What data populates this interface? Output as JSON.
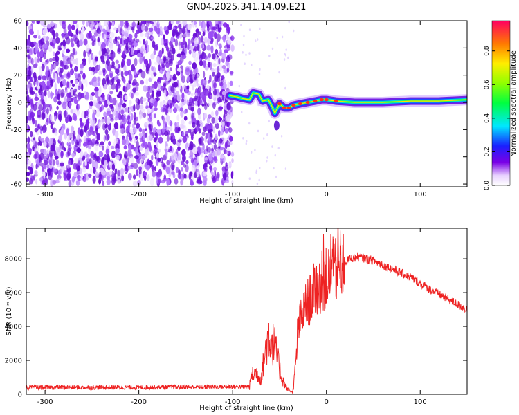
{
  "title": "GN04.2025.341.14.09.E21",
  "chart_data": [
    {
      "type": "heatmap",
      "name": "spectrogram",
      "xlabel": "Height of straight line (km)",
      "ylabel": "Frequency (Hz)",
      "xlim": [
        -320,
        150
      ],
      "ylim": [
        -62,
        60
      ],
      "xticks": [
        -300,
        -200,
        -100,
        0,
        100
      ],
      "yticks": [
        -60,
        -40,
        -20,
        0,
        20,
        40,
        60
      ],
      "noise_region": {
        "from": -320,
        "to": -100,
        "freq_range": [
          -60,
          60
        ],
        "amplitude": 0.2
      },
      "signal_track": [
        {
          "x": -103,
          "f": 5
        },
        {
          "x": -95,
          "f": 4
        },
        {
          "x": -90,
          "f": 3
        },
        {
          "x": -82,
          "f": 2
        },
        {
          "x": -78,
          "f": 7
        },
        {
          "x": -72,
          "f": 6
        },
        {
          "x": -68,
          "f": 1
        },
        {
          "x": -62,
          "f": 2
        },
        {
          "x": -58,
          "f": -3
        },
        {
          "x": -55,
          "f": -8
        },
        {
          "x": -50,
          "f": -1
        },
        {
          "x": -45,
          "f": -4
        },
        {
          "x": -40,
          "f": -4
        },
        {
          "x": -35,
          "f": -2
        },
        {
          "x": -28,
          "f": -1
        },
        {
          "x": -20,
          "f": 0
        },
        {
          "x": -12,
          "f": 1
        },
        {
          "x": -5,
          "f": 2
        },
        {
          "x": 0,
          "f": 2
        },
        {
          "x": 10,
          "f": 1
        },
        {
          "x": 30,
          "f": 0
        },
        {
          "x": 60,
          "f": 0
        },
        {
          "x": 90,
          "f": 1
        },
        {
          "x": 120,
          "f": 1
        },
        {
          "x": 150,
          "f": 2
        }
      ],
      "colorbar": {
        "label": "Normalized spectral amplitude",
        "ticks": [
          0.0,
          0.2,
          0.4,
          0.6,
          0.8
        ],
        "tick_labels": [
          "0.0",
          "0.2",
          "0.4",
          "0.6",
          "0.8"
        ],
        "range": [
          0,
          0.98
        ]
      }
    },
    {
      "type": "line",
      "name": "snr",
      "xlabel": "Height of straight line (km)",
      "ylabel": "SNR (10 * v/v)",
      "xlim": [
        -320,
        150
      ],
      "ylim": [
        0,
        9800
      ],
      "xticks": [
        -300,
        -200,
        -100,
        0,
        100
      ],
      "yticks": [
        0,
        2000,
        4000,
        6000,
        8000
      ],
      "color": "#ee2222",
      "envelope": [
        {
          "x": -320,
          "y": 400
        },
        {
          "x": -200,
          "y": 400
        },
        {
          "x": -100,
          "y": 450
        },
        {
          "x": -82,
          "y": 450
        },
        {
          "x": -80,
          "y": 1100
        },
        {
          "x": -75,
          "y": 1300
        },
        {
          "x": -70,
          "y": 900
        },
        {
          "x": -62,
          "y": 3500
        },
        {
          "x": -55,
          "y": 2800
        },
        {
          "x": -48,
          "y": 1000
        },
        {
          "x": -42,
          "y": 300
        },
        {
          "x": -36,
          "y": 100
        },
        {
          "x": -33,
          "y": 1500
        },
        {
          "x": -30,
          "y": 4000
        },
        {
          "x": -22,
          "y": 5200
        },
        {
          "x": -12,
          "y": 6200
        },
        {
          "x": -5,
          "y": 6600
        },
        {
          "x": 5,
          "y": 7000
        },
        {
          "x": 15,
          "y": 7600
        },
        {
          "x": 25,
          "y": 8000
        },
        {
          "x": 35,
          "y": 8100
        },
        {
          "x": 50,
          "y": 7900
        },
        {
          "x": 70,
          "y": 7400
        },
        {
          "x": 90,
          "y": 6900
        },
        {
          "x": 110,
          "y": 6200
        },
        {
          "x": 130,
          "y": 5600
        },
        {
          "x": 150,
          "y": 5000
        }
      ]
    }
  ]
}
